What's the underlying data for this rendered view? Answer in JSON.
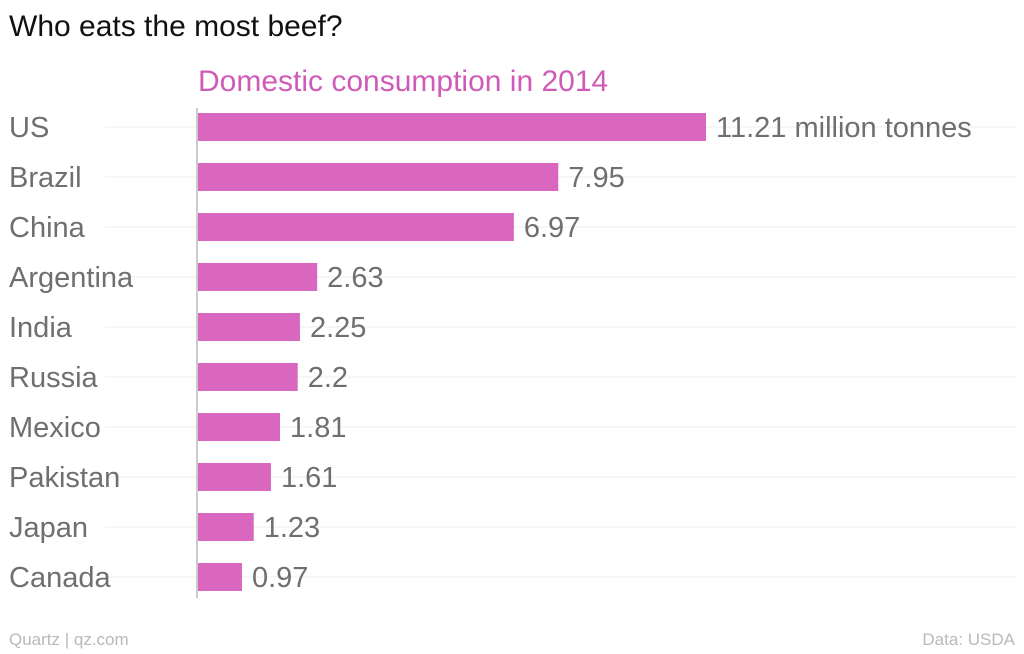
{
  "title": "Who eats the most beef?",
  "footer": {
    "left": "Quartz | qz.com",
    "right": "Data: USDA"
  },
  "colors": {
    "bar": "#d967bf",
    "subtitle": "#cf5ab8",
    "label": "#6f6f6f",
    "grid": "#ececec",
    "axis": "#9a9a9a"
  },
  "chart_data": {
    "type": "bar",
    "orientation": "horizontal",
    "title": "Who eats the most beef?",
    "subtitle": "Domestic consumption in 2014",
    "categories": [
      "US",
      "Brazil",
      "China",
      "Argentina",
      "India",
      "Russia",
      "Mexico",
      "Pakistan",
      "Japan",
      "Canada"
    ],
    "values": [
      11.21,
      7.95,
      6.97,
      2.63,
      2.25,
      2.2,
      1.81,
      1.61,
      1.23,
      0.97
    ],
    "value_labels": [
      "11.21 million tonnes",
      "7.95",
      "6.97",
      "2.63",
      "2.25",
      "2.2",
      "1.81",
      "1.61",
      "1.23",
      "0.97"
    ],
    "xlim": [
      0,
      11.21
    ],
    "grid": true,
    "legend": "none"
  }
}
